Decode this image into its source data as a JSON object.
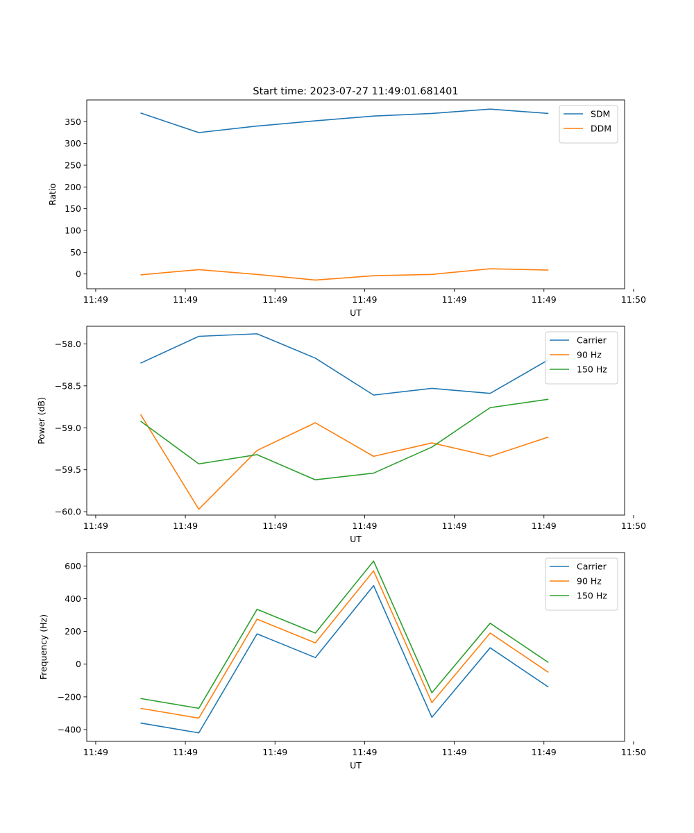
{
  "title": "Start time: 2023-07-27 11:49:01.681401",
  "colors": {
    "c0": "#1f77b4",
    "c1": "#ff7f0e",
    "c2": "#2ca02c"
  },
  "chart_data": [
    {
      "type": "line",
      "title": "Start time: 2023-07-27 11:49:01.681401",
      "xlabel": "UT",
      "ylabel": "Ratio",
      "x": [
        0.5,
        1.15,
        1.8,
        2.45,
        3.1,
        3.75,
        4.4,
        5.05
      ],
      "xlim": [
        -0.1,
        5.9
      ],
      "xticks": [
        0,
        1,
        2,
        3,
        4,
        5,
        6
      ],
      "xtick_labels": [
        "11:49",
        "11:49",
        "11:49",
        "11:49",
        "11:49",
        "11:49",
        "11:50"
      ],
      "ylim": [
        -34,
        400
      ],
      "yticks": [
        0,
        50,
        100,
        150,
        200,
        250,
        300,
        350
      ],
      "ytick_labels": [
        "0",
        "50",
        "100",
        "150",
        "200",
        "250",
        "300",
        "350"
      ],
      "legend_position": "top-right",
      "series": [
        {
          "name": "SDM",
          "color": "#1f77b4",
          "values": [
            370,
            325,
            340,
            352,
            363,
            369,
            379,
            369
          ]
        },
        {
          "name": "DDM",
          "color": "#ff7f0e",
          "values": [
            -2,
            10,
            -1,
            -14,
            -4,
            -1,
            12,
            9
          ]
        }
      ]
    },
    {
      "type": "line",
      "xlabel": "UT",
      "ylabel": "Power (dB)",
      "x": [
        0.5,
        1.15,
        1.8,
        2.45,
        3.1,
        3.75,
        4.4,
        5.05
      ],
      "xlim": [
        -0.1,
        5.9
      ],
      "xticks": [
        0,
        1,
        2,
        3,
        4,
        5,
        6
      ],
      "xtick_labels": [
        "11:49",
        "11:49",
        "11:49",
        "11:49",
        "11:49",
        "11:49",
        "11:50"
      ],
      "ylim": [
        -60.04,
        -57.79
      ],
      "yticks": [
        -60.0,
        -59.5,
        -59.0,
        -58.5,
        -58.0
      ],
      "ytick_labels": [
        "−60.0",
        "−59.5",
        "−59.0",
        "−58.5",
        "−58.0"
      ],
      "legend_position": "top-right",
      "series": [
        {
          "name": "Carrier",
          "color": "#1f77b4",
          "values": [
            -58.23,
            -57.91,
            -57.88,
            -58.17,
            -58.61,
            -58.53,
            -58.59,
            -58.19
          ]
        },
        {
          "name": "90 Hz",
          "color": "#ff7f0e",
          "values": [
            -58.84,
            -59.97,
            -59.27,
            -58.94,
            -59.34,
            -59.18,
            -59.34,
            -59.11
          ]
        },
        {
          "name": "150 Hz",
          "color": "#2ca02c",
          "values": [
            -58.92,
            -59.43,
            -59.32,
            -59.62,
            -59.54,
            -59.23,
            -58.76,
            -58.66
          ]
        }
      ]
    },
    {
      "type": "line",
      "xlabel": "UT",
      "ylabel": "Frequency (Hz)",
      "x": [
        0.5,
        1.15,
        1.8,
        2.45,
        3.1,
        3.75,
        4.4,
        5.05
      ],
      "xlim": [
        -0.1,
        5.9
      ],
      "xticks": [
        0,
        1,
        2,
        3,
        4,
        5,
        6
      ],
      "xtick_labels": [
        "11:49",
        "11:49",
        "11:49",
        "11:49",
        "11:49",
        "11:49",
        "11:50"
      ],
      "ylim": [
        -472,
        682
      ],
      "yticks": [
        -400,
        -200,
        0,
        200,
        400,
        600
      ],
      "ytick_labels": [
        "−400",
        "−200",
        "0",
        "200",
        "400",
        "600"
      ],
      "legend_position": "top-right",
      "series": [
        {
          "name": "Carrier",
          "color": "#1f77b4",
          "values": [
            -360,
            -420,
            185,
            40,
            480,
            -325,
            100,
            -140
          ]
        },
        {
          "name": "90 Hz",
          "color": "#ff7f0e",
          "values": [
            -270,
            -330,
            275,
            130,
            570,
            -235,
            190,
            -50
          ]
        },
        {
          "name": "150 Hz",
          "color": "#2ca02c",
          "values": [
            -210,
            -270,
            335,
            190,
            630,
            -175,
            250,
            10
          ]
        }
      ]
    }
  ]
}
